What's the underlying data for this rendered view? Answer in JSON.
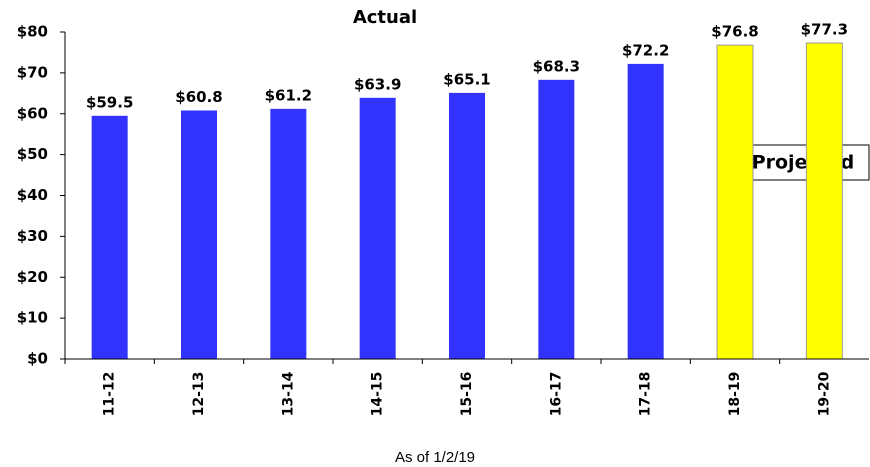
{
  "chart_data": {
    "type": "bar",
    "title": "Actual",
    "annotation": "Projected",
    "note": "As of 1/2/19",
    "categories": [
      "11-12",
      "12-13",
      "13-14",
      "14-15",
      "15-16",
      "16-17",
      "17-18",
      "18-19",
      "19-20"
    ],
    "values": [
      59.5,
      60.8,
      61.2,
      63.9,
      65.1,
      68.3,
      72.2,
      76.8,
      77.3
    ],
    "value_labels": [
      "$59.5",
      "$60.8",
      "$61.2",
      "$63.9",
      "$65.1",
      "$68.3",
      "$72.2",
      "$76.8",
      "$77.3"
    ],
    "colors": [
      "#3333ff",
      "#3333ff",
      "#3333ff",
      "#3333ff",
      "#3333ff",
      "#3333ff",
      "#3333ff",
      "#ffff00",
      "#ffff00"
    ],
    "ylim": [
      0,
      80
    ],
    "yticks": [
      {
        "value": 0,
        "label": "$0"
      },
      {
        "value": 10,
        "label": "$10"
      },
      {
        "value": 20,
        "label": "$20"
      },
      {
        "value": 30,
        "label": "$30"
      },
      {
        "value": 40,
        "label": "$40"
      },
      {
        "value": 50,
        "label": "$50"
      },
      {
        "value": 60,
        "label": "$60"
      },
      {
        "value": 70,
        "label": "$70"
      },
      {
        "value": 80,
        "label": "$80"
      }
    ]
  }
}
